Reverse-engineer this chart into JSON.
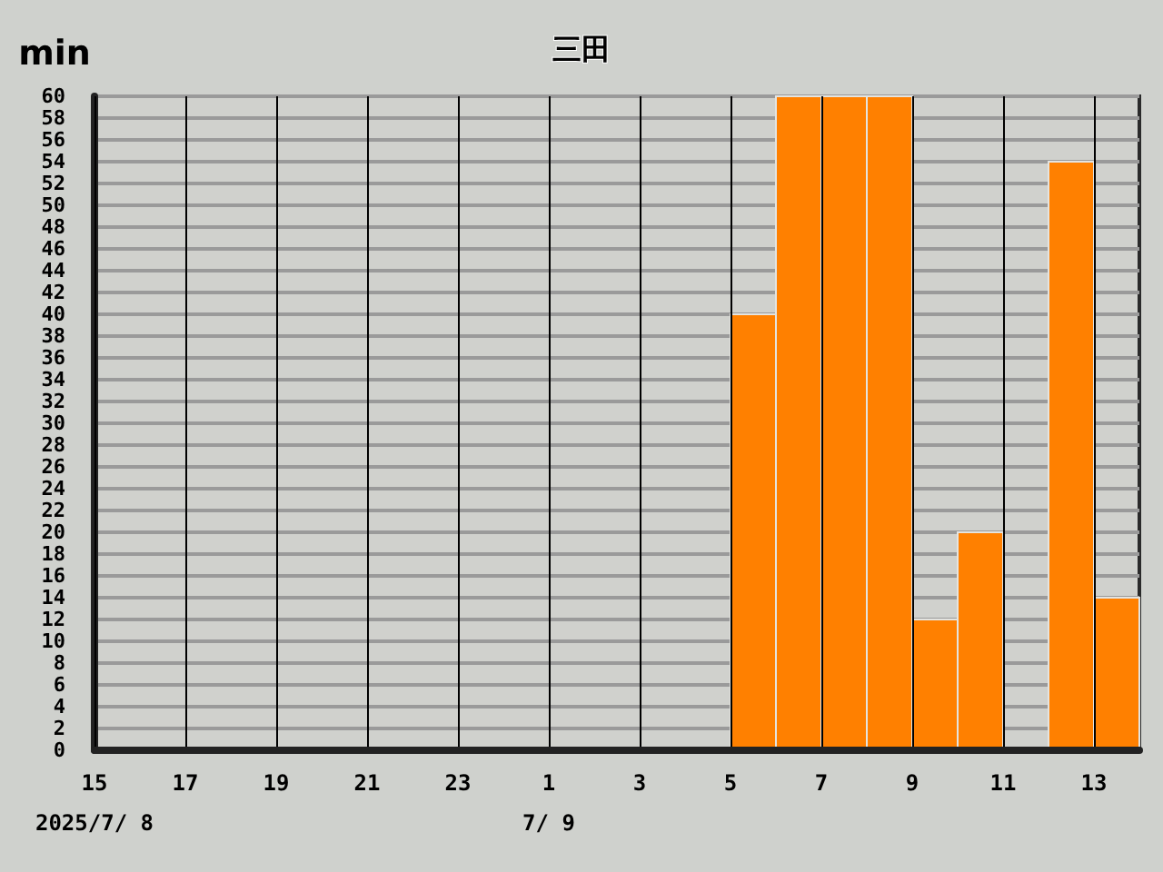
{
  "chart_data": {
    "type": "histogram",
    "title": "三田",
    "ylabel": "min",
    "bins": [
      "2025-07-08T15:00",
      "2025-07-08T16:00",
      "2025-07-08T17:00",
      "2025-07-08T18:00",
      "2025-07-08T19:00",
      "2025-07-08T20:00",
      "2025-07-08T21:00",
      "2025-07-08T22:00",
      "2025-07-08T23:00",
      "2025-07-09T00:00",
      "2025-07-09T01:00",
      "2025-07-09T02:00",
      "2025-07-09T03:00",
      "2025-07-09T04:00",
      "2025-07-09T05:00",
      "2025-07-09T06:00",
      "2025-07-09T07:00",
      "2025-07-09T08:00",
      "2025-07-09T09:00",
      "2025-07-09T10:00",
      "2025-07-09T11:00",
      "2025-07-09T12:00",
      "2025-07-09T13:00",
      "2025-07-09T14:00"
    ],
    "values": [
      0,
      0,
      0,
      0,
      0,
      0,
      0,
      0,
      0,
      0,
      0,
      0,
      0,
      0,
      40,
      60,
      60,
      60,
      12,
      20,
      0,
      54,
      14
    ],
    "color": "#ff8000",
    "xlim": [
      "2025-07-08T15:00",
      "2025-07-09T14:00"
    ],
    "xticks": [
      {
        "value": "2025-07-08T15:00",
        "label": "15"
      },
      {
        "value": "2025-07-08T17:00",
        "label": "17"
      },
      {
        "value": "2025-07-08T19:00",
        "label": "19"
      },
      {
        "value": "2025-07-08T21:00",
        "label": "21"
      },
      {
        "value": "2025-07-08T23:00",
        "label": "23"
      },
      {
        "value": "2025-07-09T01:00",
        "label": "1"
      },
      {
        "value": "2025-07-09T03:00",
        "label": "3"
      },
      {
        "value": "2025-07-09T05:00",
        "label": "5"
      },
      {
        "value": "2025-07-09T07:00",
        "label": "7"
      },
      {
        "value": "2025-07-09T09:00",
        "label": "9"
      },
      {
        "value": "2025-07-09T11:00",
        "label": "11"
      },
      {
        "value": "2025-07-09T13:00",
        "label": "13"
      }
    ],
    "ylim": [
      0,
      60
    ],
    "yticks": [
      0,
      2,
      4,
      6,
      8,
      10,
      12,
      14,
      16,
      18,
      20,
      22,
      24,
      26,
      28,
      30,
      32,
      34,
      36,
      38,
      40,
      42,
      44,
      46,
      48,
      50,
      52,
      54,
      56,
      58,
      60
    ],
    "grid": true,
    "annotations": [
      "2025/7/ 8",
      "7/ 9"
    ]
  }
}
